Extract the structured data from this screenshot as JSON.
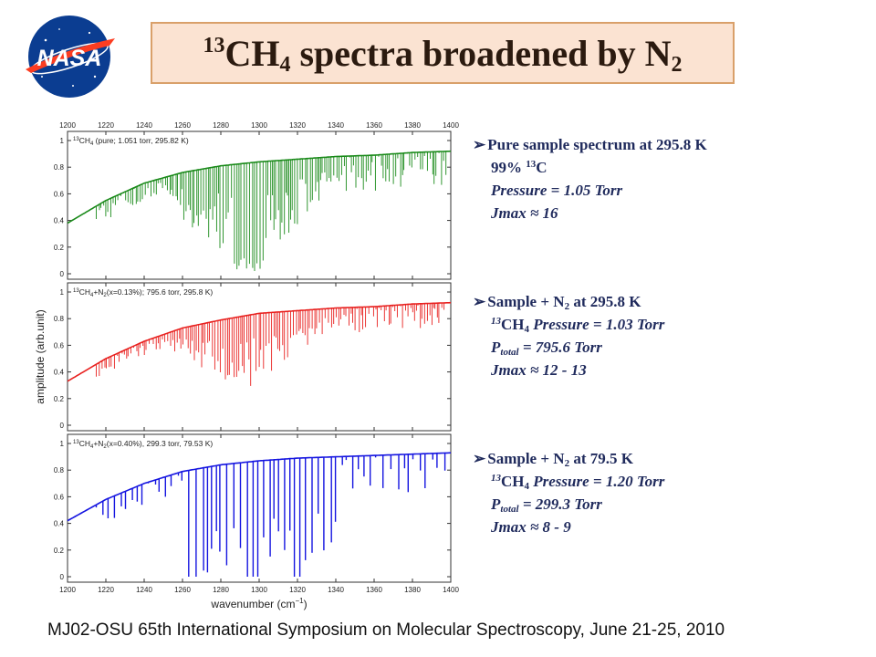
{
  "logo": {
    "text": "NASA",
    "colors": {
      "blue": "#0b3d91",
      "red": "#fc3d21"
    }
  },
  "title": {
    "iso_mass": "13",
    "formula": "CH",
    "h_count": "4",
    "rest": " spectra broadened by N",
    "n_count": "2"
  },
  "chart_data": {
    "type": "line",
    "xlabel": "wavenumber (cm",
    "xlabel_exp": "−1",
    "xlabel_close": ")",
    "ylabel": "amplitude (arb.unit)",
    "xlim": [
      1200,
      1400
    ],
    "x_ticks": [
      "1200",
      "1220",
      "1240",
      "1260",
      "1280",
      "1300",
      "1320",
      "1340",
      "1360",
      "1380",
      "1400"
    ],
    "panels": [
      {
        "label_iso": "13",
        "label_mol": "CH",
        "label_sub": "4",
        "label_rest": " (pure; 1.051 torr, 295.82 K)",
        "color": "#1a8a1a",
        "ylim": [
          0,
          1
        ],
        "y_ticks": [
          "1",
          "0.8",
          "0.6",
          "0.4",
          "0.2",
          "0"
        ],
        "baseline": [
          [
            1200,
            0.38
          ],
          [
            1220,
            0.55
          ],
          [
            1240,
            0.68
          ],
          [
            1260,
            0.76
          ],
          [
            1280,
            0.81
          ],
          [
            1300,
            0.84
          ],
          [
            1320,
            0.86
          ],
          [
            1340,
            0.88
          ],
          [
            1360,
            0.89
          ],
          [
            1380,
            0.91
          ],
          [
            1400,
            0.92
          ]
        ],
        "dense_range": [
          1255,
          1345
        ],
        "dense_center": 1295,
        "peak_depth": 0.85
      },
      {
        "label_iso": "13",
        "label_mol": "CH",
        "label_sub": "4",
        "label_rest": "+N",
        "label_sub2": "2",
        "label_rest2": "(x=0.13%); 795.6 torr, 295.8 K)",
        "color": "#e8211f",
        "ylim": [
          0,
          1
        ],
        "y_ticks": [
          "1",
          "0.8",
          "0.6",
          "0.4",
          "0.2",
          "0"
        ],
        "baseline": [
          [
            1200,
            0.33
          ],
          [
            1220,
            0.5
          ],
          [
            1240,
            0.63
          ],
          [
            1260,
            0.73
          ],
          [
            1280,
            0.79
          ],
          [
            1300,
            0.84
          ],
          [
            1320,
            0.86
          ],
          [
            1340,
            0.88
          ],
          [
            1360,
            0.89
          ],
          [
            1380,
            0.91
          ],
          [
            1400,
            0.92
          ]
        ],
        "dense_range": [
          1255,
          1345
        ],
        "dense_center": 1295,
        "peak_depth": 0.6
      },
      {
        "label_iso": "13",
        "label_mol": "CH",
        "label_sub": "4",
        "label_rest": "+N",
        "label_sub2": "2",
        "label_rest2": "(x=0.40%), 299.3 torr, 79.53 K)",
        "color": "#1414e0",
        "ylim": [
          0,
          1
        ],
        "y_ticks": [
          "1",
          "0.8",
          "0.6",
          "0.4",
          "0.2",
          "0"
        ],
        "baseline": [
          [
            1200,
            0.42
          ],
          [
            1220,
            0.58
          ],
          [
            1240,
            0.7
          ],
          [
            1260,
            0.79
          ],
          [
            1280,
            0.84
          ],
          [
            1300,
            0.87
          ],
          [
            1320,
            0.89
          ],
          [
            1340,
            0.9
          ],
          [
            1360,
            0.91
          ],
          [
            1380,
            0.92
          ],
          [
            1400,
            0.93
          ]
        ],
        "dense_range": [
          1260,
          1340
        ],
        "dense_center": 1295,
        "peak_depth": 0.95
      }
    ]
  },
  "annotations": [
    {
      "head": "Pure sample spectrum at 295.8 K",
      "line1_pre": "99% ",
      "line1_sup": "13",
      "line1_post": "C",
      "line2": "Pressure  = 1.05 Torr",
      "line3": "Jmax ≈ 16"
    },
    {
      "head_pre": "Sample + N",
      "head_sub": "2",
      "head_post": " at 295.8 K",
      "l1_sup": "13",
      "l1_mol": "CH",
      "l1_sub": "4",
      "l1_post": " Pressure = 1.03 Torr",
      "l2_pre": "P",
      "l2_sub": "total",
      "l2_post": "  = 795.6 Torr",
      "l3": "Jmax ≈ 12 - 13"
    },
    {
      "head_pre": "Sample + N",
      "head_sub": "2",
      "head_post": "  at  79.5 K",
      "l1_sup": "13",
      "l1_mol": "CH",
      "l1_sub": "4",
      "l1_post": " Pressure = 1.20 Torr",
      "l2_pre": "P",
      "l2_sub": "total",
      "l2_post": "  = 299.3 Torr",
      "l3": "Jmax ≈ 8 - 9"
    }
  ],
  "footer": "MJ02-OSU 65th International Symposium on Molecular Spectroscopy, June 21-25, 2010"
}
